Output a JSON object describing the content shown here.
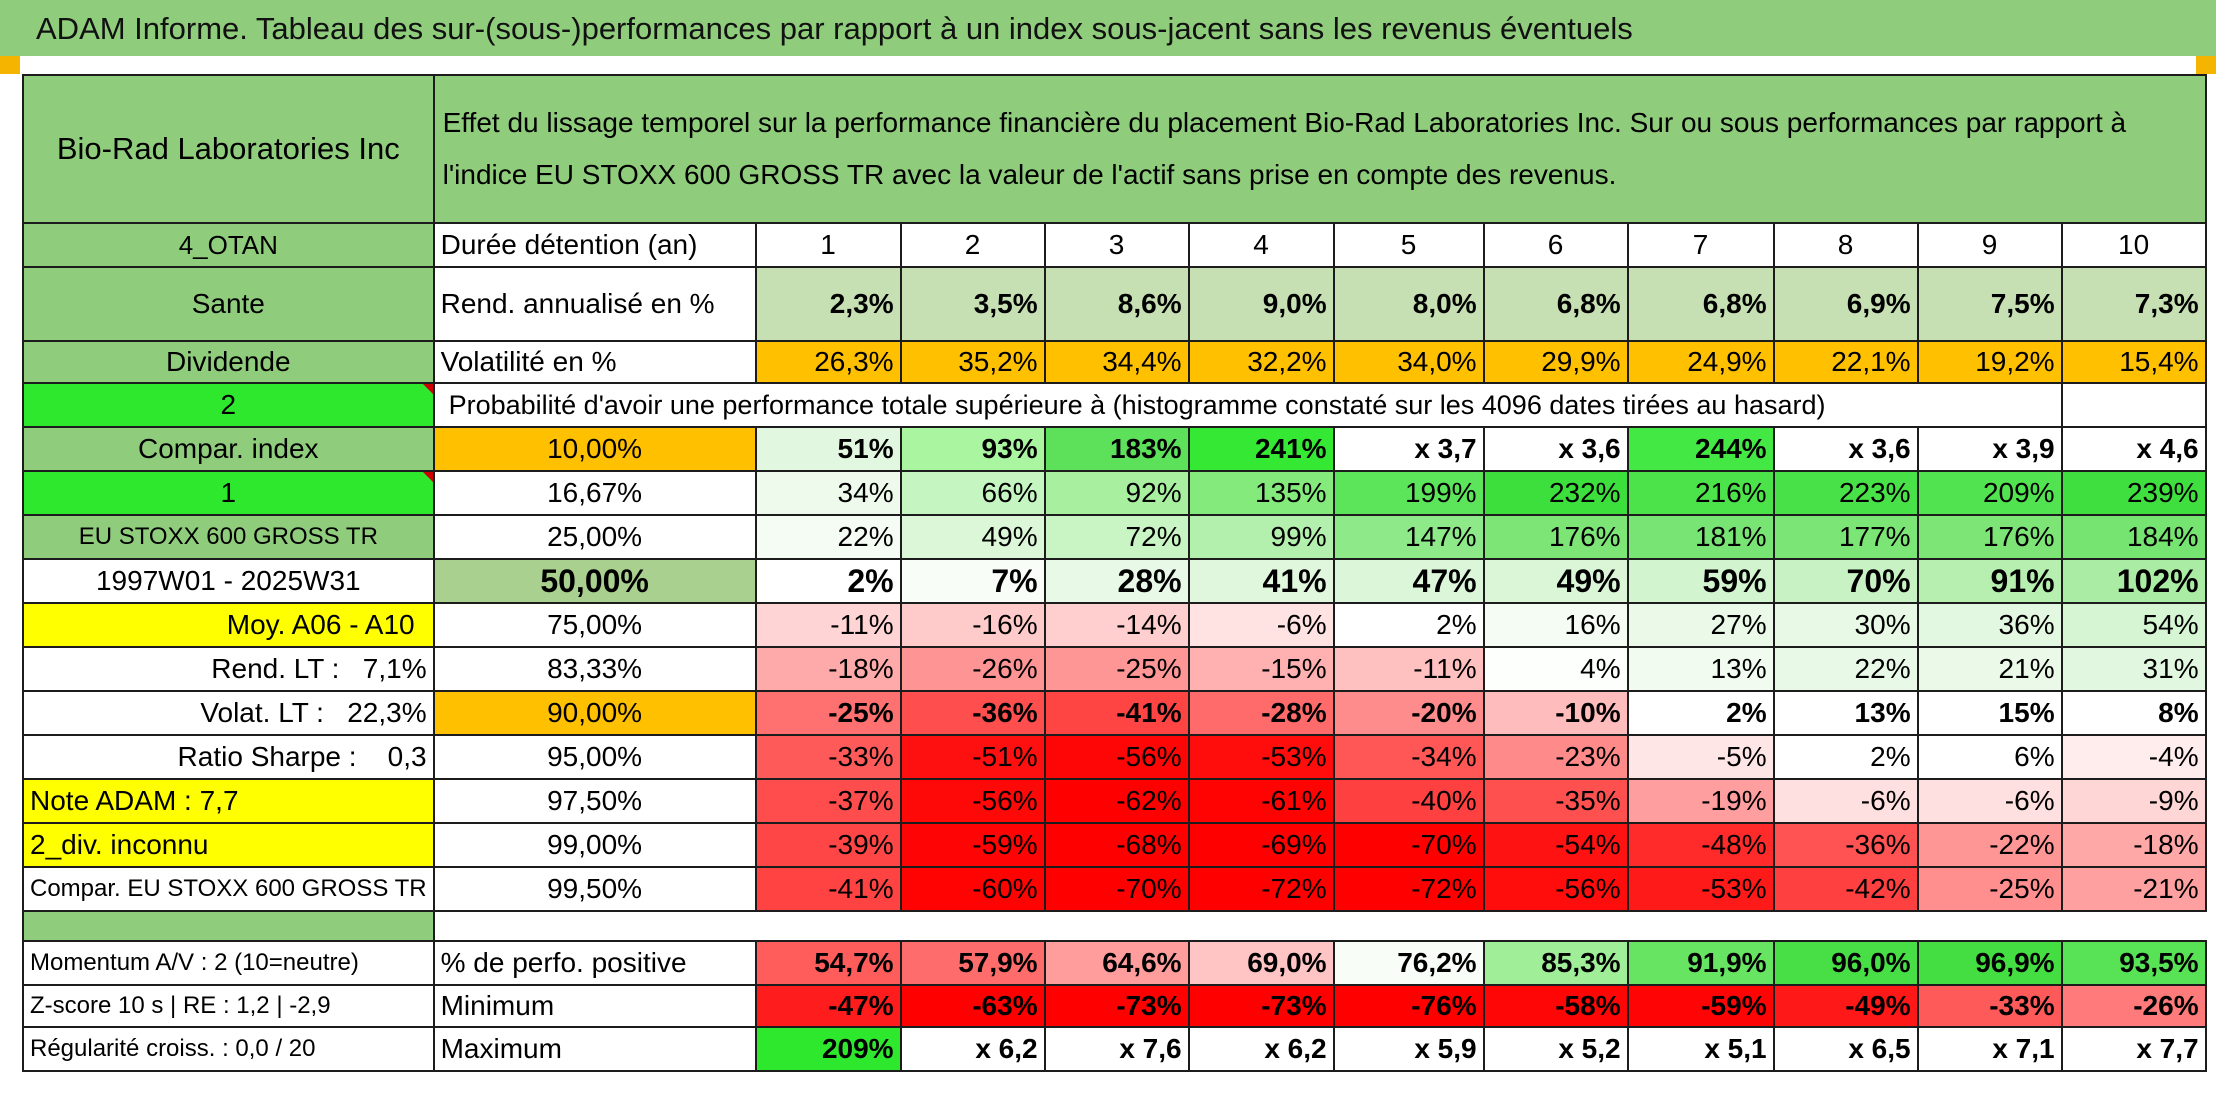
{
  "banner": "ADAM Informe. Tableau des sur-(sous-)performances par rapport à un index sous-jacent sans les revenus éventuels",
  "left": {
    "company": "Bio-Rad Laboratories Inc",
    "code": "4_OTAN",
    "sector": "Sante",
    "type": "Dividende",
    "value_2": "2",
    "compar_index": "Compar. index",
    "value_1": "1",
    "index_name": "EU STOXX 600 GROSS TR",
    "period": "1997W01 - 2025W31",
    "moy": "Moy. A06 - A10",
    "rend_lt": "Rend. LT :   7,1%",
    "volat_lt": "Volat. LT :   22,3%",
    "sharpe": "Ratio Sharpe :    0,3",
    "note": "Note ADAM : 7,7",
    "div": "2_div. inconnu",
    "compar_full": "Compar. EU STOXX 600 GROSS TR",
    "momentum": "Momentum A/V : 2 (10=neutre)",
    "zscore": "Z-score 10 s | RE : 1,2 | -2,9",
    "regularite": "Régularité croiss. : 0,0 / 20"
  },
  "title": "Effet du lissage temporel sur la performance financière du placement Bio-Rad Laboratories Inc. Sur ou sous performances par rapport à l'indice EU STOXX 600 GROSS TR avec la valeur de l'actif sans prise en compte des revenus.",
  "durations": {
    "label": "Durée détention (an)",
    "values": [
      "1",
      "2",
      "3",
      "4",
      "5",
      "6",
      "7",
      "8",
      "9",
      "10"
    ]
  },
  "rend": {
    "label": "Rend. annualisé en %",
    "values": [
      "2,3%",
      "3,5%",
      "8,6%",
      "9,0%",
      "8,0%",
      "6,8%",
      "6,8%",
      "6,9%",
      "7,5%",
      "7,3%"
    ],
    "colors": [
      "#c6e0b4",
      "#c6e0b4",
      "#c6e0b4",
      "#c6e0b4",
      "#c6e0b4",
      "#c6e0b4",
      "#c6e0b4",
      "#c6e0b4",
      "#c6e0b4",
      "#c6e0b4"
    ]
  },
  "vol": {
    "label": "Volatilité en %",
    "values": [
      "26,3%",
      "35,2%",
      "34,4%",
      "32,2%",
      "34,0%",
      "29,9%",
      "24,9%",
      "22,1%",
      "19,2%",
      "15,4%"
    ],
    "colors": [
      "#ffc000",
      "#ffc000",
      "#ffc000",
      "#ffc000",
      "#ffc000",
      "#ffc000",
      "#ffc000",
      "#ffc000",
      "#ffc000",
      "#ffc000"
    ]
  },
  "prob_header": "Probabilité d'avoir une performance totale supérieure à (histogramme constaté sur les 4096 dates tirées au hasard)",
  "rows": [
    {
      "pct": "10,00%",
      "pct_color": "#ffc000",
      "values": [
        "51%",
        "93%",
        "183%",
        "241%",
        "x 3,7",
        "x 3,6",
        "244%",
        "x 3,6",
        "x 3,9",
        "x 4,6"
      ],
      "colors": [
        "#e2f7e0",
        "#aaf5a0",
        "#5de05a",
        "#34e834",
        "#ffffff",
        "#ffffff",
        "#44e844",
        "#ffffff",
        "#ffffff",
        "#ffffff"
      ]
    },
    {
      "pct": "16,67%",
      "pct_color": "#ffffff",
      "values": [
        "34%",
        "66%",
        "92%",
        "135%",
        "199%",
        "232%",
        "216%",
        "223%",
        "209%",
        "239%"
      ],
      "colors": [
        "#eefbec",
        "#c5f5c0",
        "#a8f0a0",
        "#84ea7c",
        "#5ce45a",
        "#3cdf3c",
        "#4be24a",
        "#48e148",
        "#52e350",
        "#40df40"
      ]
    },
    {
      "pct": "25,00%",
      "pct_color": "#ffffff",
      "values": [
        "22%",
        "49%",
        "72%",
        "99%",
        "147%",
        "176%",
        "181%",
        "177%",
        "176%",
        "184%"
      ],
      "colors": [
        "#f4fcf3",
        "#dbf7d8",
        "#c9f4c4",
        "#b4f0ad",
        "#8ee988",
        "#7ce576",
        "#78e474",
        "#7be575",
        "#7ce576",
        "#76e470"
      ]
    },
    {
      "pct": "50,00%",
      "pct_color": "#a9d08e",
      "values": [
        "2%",
        "7%",
        "28%",
        "41%",
        "47%",
        "49%",
        "59%",
        "70%",
        "91%",
        "102%"
      ],
      "colors": [
        "#ffffff",
        "#f8fdf7",
        "#e9f9e7",
        "#e0f7dd",
        "#dbf6d8",
        "#daf6d7",
        "#d2f4ce",
        "#c8f2c3",
        "#b6efb0",
        "#aaeca3"
      ]
    },
    {
      "pct": "75,00%",
      "pct_color": "#ffffff",
      "values": [
        "-11%",
        "-16%",
        "-14%",
        "-6%",
        "2%",
        "16%",
        "27%",
        "30%",
        "36%",
        "54%"
      ],
      "colors": [
        "#ffd4d4",
        "#ffcaca",
        "#ffcece",
        "#ffe2e2",
        "#ffffff",
        "#f4fcf3",
        "#eaf9e8",
        "#e8f9e6",
        "#e3f8e1",
        "#d6f5d3"
      ]
    },
    {
      "pct": "83,33%",
      "pct_color": "#ffffff",
      "values": [
        "-18%",
        "-26%",
        "-25%",
        "-15%",
        "-11%",
        "4%",
        "13%",
        "22%",
        "21%",
        "31%"
      ],
      "colors": [
        "#ffaaaa",
        "#ff9494",
        "#ff9696",
        "#ffb0b0",
        "#ffc0c0",
        "#fcfffb",
        "#f1fbef",
        "#e9f9e7",
        "#eaf9e8",
        "#e2f7df"
      ]
    },
    {
      "pct": "90,00%",
      "pct_color": "#ffc000",
      "values": [
        "-25%",
        "-36%",
        "-41%",
        "-28%",
        "-20%",
        "-10%",
        "2%",
        "13%",
        "15%",
        "8%"
      ],
      "colors": [
        "#ff7070",
        "#ff4e4e",
        "#ff4444",
        "#ff6a6a",
        "#ff8c8c",
        "#ffbcbc",
        "#ffffff",
        "#ffffff",
        "#ffffff",
        "#ffffff"
      ]
    },
    {
      "pct": "95,00%",
      "pct_color": "#ffffff",
      "values": [
        "-33%",
        "-51%",
        "-56%",
        "-53%",
        "-34%",
        "-23%",
        "-5%",
        "2%",
        "6%",
        "-4%"
      ],
      "colors": [
        "#ff5a5a",
        "#ff1010",
        "#ff0606",
        "#ff0c0c",
        "#ff5656",
        "#ff8a8a",
        "#ffe6e6",
        "#ffffff",
        "#ffffff",
        "#ffecec"
      ]
    },
    {
      "pct": "97,50%",
      "pct_color": "#ffffff",
      "values": [
        "-37%",
        "-56%",
        "-62%",
        "-61%",
        "-40%",
        "-35%",
        "-19%",
        "-6%",
        "-6%",
        "-9%"
      ],
      "colors": [
        "#ff4c4c",
        "#ff0808",
        "#ff0000",
        "#ff0202",
        "#ff4040",
        "#ff5050",
        "#ff9e9e",
        "#ffe0e0",
        "#ffe0e0",
        "#ffd6d6"
      ]
    },
    {
      "pct": "99,00%",
      "pct_color": "#ffffff",
      "values": [
        "-39%",
        "-59%",
        "-68%",
        "-69%",
        "-70%",
        "-54%",
        "-48%",
        "-36%",
        "-22%",
        "-18%"
      ],
      "colors": [
        "#ff4646",
        "#ff0404",
        "#ff0000",
        "#ff0000",
        "#ff0000",
        "#ff1212",
        "#ff2a2a",
        "#ff5252",
        "#ff9696",
        "#ffa8a8"
      ]
    },
    {
      "pct": "99,50%",
      "pct_color": "#ffffff",
      "values": [
        "-41%",
        "-60%",
        "-70%",
        "-72%",
        "-72%",
        "-56%",
        "-53%",
        "-42%",
        "-25%",
        "-21%"
      ],
      "colors": [
        "#ff4242",
        "#ff0202",
        "#ff0000",
        "#ff0000",
        "#ff0000",
        "#ff0c0c",
        "#ff1a1a",
        "#ff4040",
        "#ff8e8e",
        "#ffa0a0"
      ]
    }
  ],
  "perf_pos": {
    "label": "% de perfo. positive",
    "values": [
      "54,7%",
      "57,9%",
      "64,6%",
      "69,0%",
      "76,2%",
      "85,3%",
      "91,9%",
      "96,0%",
      "96,9%",
      "93,5%"
    ],
    "colors": [
      "#ff5c5c",
      "#ff6c6c",
      "#ff9c9c",
      "#ffc4c4",
      "#f8fdf7",
      "#a0ee98",
      "#66e462",
      "#48df46",
      "#44de42",
      "#58e255"
    ]
  },
  "minimum": {
    "label": "Minimum",
    "values": [
      "-47%",
      "-63%",
      "-73%",
      "-73%",
      "-76%",
      "-58%",
      "-59%",
      "-49%",
      "-33%",
      "-26%"
    ],
    "colors": [
      "#ff1c1c",
      "#ff0000",
      "#ff0000",
      "#ff0000",
      "#ff0000",
      "#ff0606",
      "#ff0404",
      "#ff1818",
      "#ff5a5a",
      "#ff7a7a"
    ]
  },
  "maximum": {
    "label": "Maximum",
    "values": [
      "209%",
      "x 6,2",
      "x 7,6",
      "x 6,2",
      "x 5,9",
      "x 5,2",
      "x 5,1",
      "x 6,5",
      "x 7,1",
      "x 7,7"
    ],
    "colors": [
      "#2ee82e",
      "#ffffff",
      "#ffffff",
      "#ffffff",
      "#ffffff",
      "#ffffff",
      "#ffffff",
      "#ffffff",
      "#ffffff",
      "#ffffff"
    ]
  },
  "colors": {
    "header_green": "#8fcc7c",
    "bright_green": "#2ee82e",
    "yellow": "#ffff00",
    "orange": "#ffc000",
    "label_red": "#d00000"
  }
}
